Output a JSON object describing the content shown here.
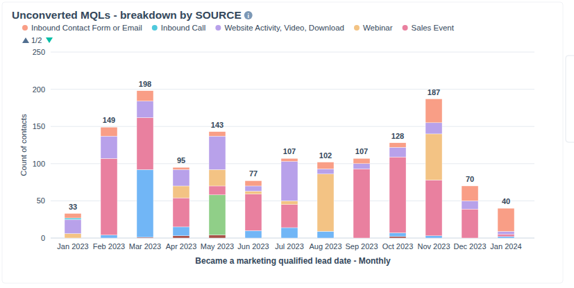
{
  "chart_data": {
    "type": "bar",
    "title": "Unconverted MQLs - breakdown by SOURCE",
    "x_label": "Became a marketing qualified lead date - Monthly",
    "y_label": "Count of contacts",
    "legend_page": "1/2",
    "stacked": true,
    "grid": true,
    "legend": "top",
    "categories": [
      "Jan 2023",
      "Feb 2023",
      "Mar 2023",
      "Apr 2023",
      "May 2023",
      "Jun 2023",
      "Jul 2023",
      "Aug 2023",
      "Sep 2023",
      "Oct 2023",
      "Nov 2023",
      "Dec 2023",
      "Jan 2024"
    ],
    "totals": [
      33,
      149,
      198,
      95,
      143,
      77,
      107,
      102,
      107,
      128,
      187,
      70,
      40
    ],
    "ylim": [
      0,
      250
    ],
    "yticks": [
      0,
      50,
      100,
      150,
      200,
      250
    ],
    "series": [
      {
        "name": null,
        "color": "#a8524a",
        "values": [
          0,
          0,
          1,
          3,
          4,
          0,
          0,
          0,
          0,
          2,
          0,
          0,
          0
        ]
      },
      {
        "name": null,
        "color": "#71b6f6",
        "values": [
          0,
          4,
          91,
          12,
          0,
          10,
          14,
          9,
          0,
          5,
          3,
          0,
          2
        ]
      },
      {
        "name": null,
        "color": "#90cf88",
        "values": [
          0,
          0,
          0,
          0,
          54,
          0,
          0,
          0,
          0,
          0,
          0,
          0,
          0
        ]
      },
      {
        "name": "Sales Event",
        "color": "#e9809f",
        "values": [
          0,
          103,
          70,
          39,
          12,
          49,
          31,
          0,
          93,
          102,
          75,
          39,
          3
        ]
      },
      {
        "name": "Webinar",
        "color": "#f3c384",
        "values": [
          6,
          0,
          0,
          16,
          22,
          4,
          5,
          77,
          0,
          0,
          62,
          0,
          0
        ]
      },
      {
        "name": "Website Activity, Video, Download",
        "color": "#b8a1ea",
        "values": [
          19,
          30,
          22,
          22,
          45,
          7,
          53,
          7,
          7,
          13,
          15,
          11,
          4
        ]
      },
      {
        "name": "Inbound Call",
        "color": "#4fc9dc",
        "values": [
          2,
          0,
          0,
          0,
          0,
          0,
          0,
          0,
          0,
          0,
          0,
          0,
          0
        ]
      },
      {
        "name": "Inbound Contact Form or Email",
        "color": "#f99e86",
        "values": [
          6,
          12,
          14,
          3,
          6,
          7,
          4,
          9,
          7,
          6,
          32,
          20,
          31
        ]
      }
    ]
  }
}
